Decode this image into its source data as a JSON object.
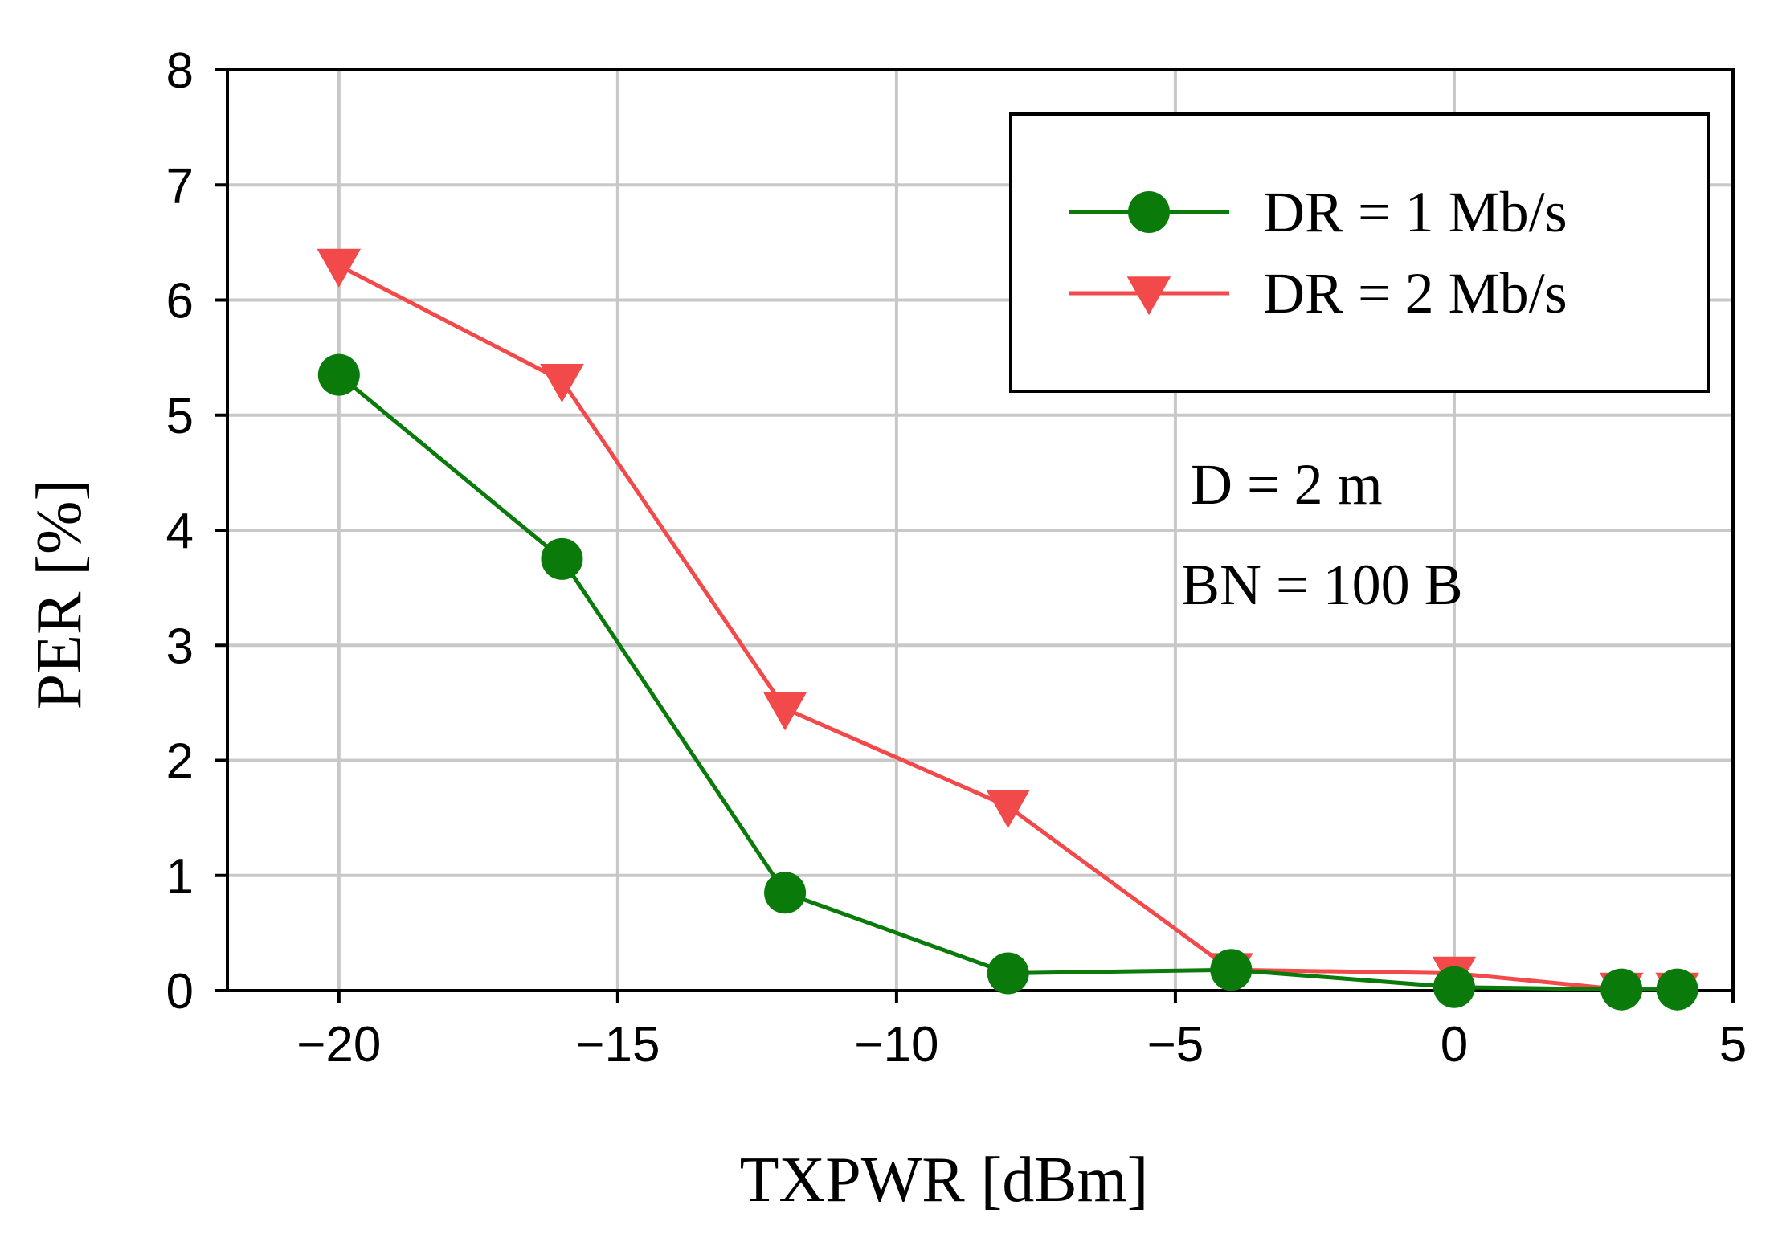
{
  "chart_data": {
    "type": "line",
    "title": "",
    "xlabel": "TXPWR [dBm]",
    "ylabel": "PER [%]",
    "xlim": [
      -22,
      5
    ],
    "ylim": [
      0,
      8
    ],
    "xticks": [
      -20,
      -15,
      -10,
      -5,
      0,
      5
    ],
    "xtick_labels": [
      "−20",
      "−15",
      "−10",
      "−5",
      "0",
      "5"
    ],
    "yticks": [
      0,
      1,
      2,
      3,
      4,
      5,
      6,
      7,
      8
    ],
    "ytick_labels": [
      "0",
      "1",
      "2",
      "3",
      "4",
      "5",
      "6",
      "7",
      "8"
    ],
    "grid": true,
    "legend_position": "top-right",
    "series": [
      {
        "name": "DR = 1 Mb/s",
        "color": "#0a7a0a",
        "marker": "circle",
        "x": [
          -20,
          -16,
          -12,
          -8,
          -4,
          0,
          3,
          4
        ],
        "y": [
          5.35,
          3.75,
          0.85,
          0.15,
          0.18,
          0.03,
          0.01,
          0.01
        ]
      },
      {
        "name": "DR = 2 Mb/s",
        "color": "#f24a4a",
        "marker": "triangle-down",
        "x": [
          -20,
          -16,
          -12,
          -8,
          -4,
          0,
          3,
          4
        ],
        "y": [
          6.3,
          5.3,
          2.45,
          1.6,
          0.18,
          0.15,
          0.01,
          0.01
        ]
      }
    ],
    "annotations": [
      "D = 2 m",
      "BN = 100 B"
    ]
  }
}
